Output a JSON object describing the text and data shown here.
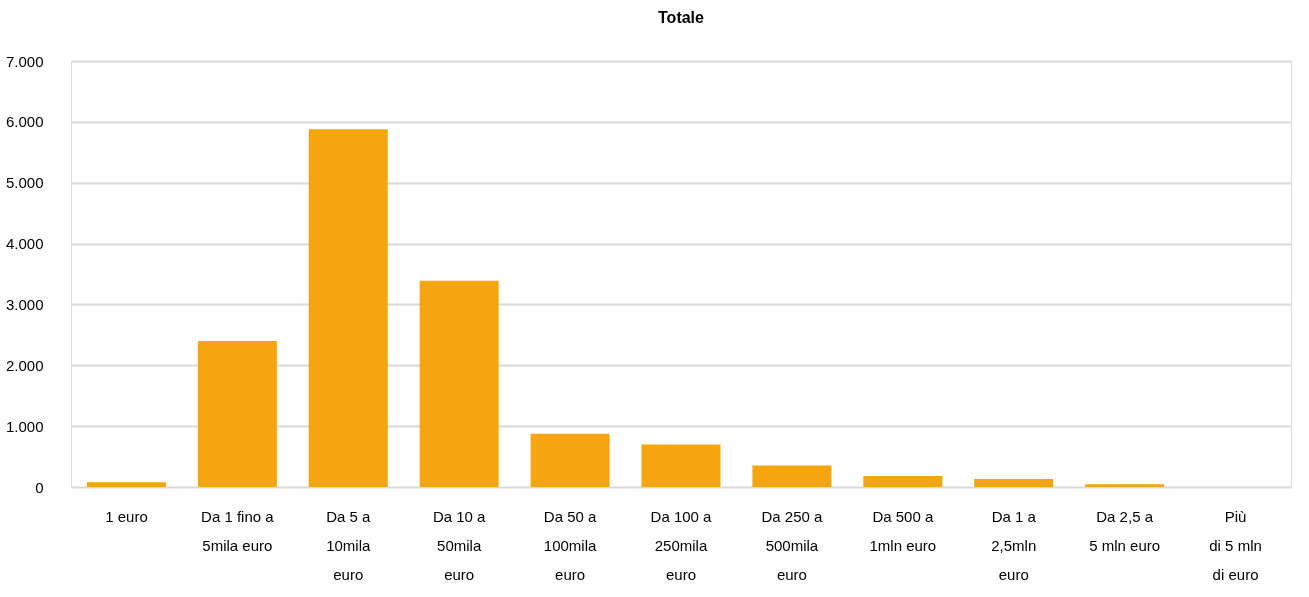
{
  "chart_data": {
    "type": "bar",
    "title": "Totale",
    "categories": [
      "1 euro",
      "Da 1 fino a\n5mila euro",
      "Da 5 a\n10mila\neuro",
      "Da 10 a\n50mila\neuro",
      "Da 50 a\n100mila\neuro",
      "Da 100 a\n250mila\neuro",
      "Da 250 a\n500mila\neuro",
      "Da 500 a\n1mln euro",
      "Da 1 a\n2,5mln\neuro",
      "Da 2,5 a\n5 mln euro",
      "Più\ndi 5 mln\ndi euro"
    ],
    "values": [
      80,
      2400,
      5880,
      3390,
      875,
      700,
      355,
      180,
      130,
      45,
      0
    ],
    "color": "#f5a510",
    "ylim": [
      0,
      7000
    ],
    "yticks": [
      0,
      {
        "value": 1000,
        "label": "1.000"
      },
      {
        "value": 2000,
        "label": "2.000"
      },
      {
        "value": 3000,
        "label": "3.000"
      },
      {
        "value": 4000,
        "label": "4.000"
      },
      {
        "value": 5000,
        "label": "5.000"
      },
      {
        "value": 6000,
        "label": "6.000"
      },
      {
        "value": 7000,
        "label": "7.000"
      }
    ],
    "grid": "y"
  }
}
